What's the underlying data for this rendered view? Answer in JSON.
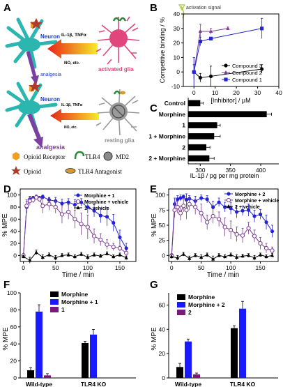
{
  "panel_labels": [
    "A",
    "B",
    "C",
    "D",
    "E",
    "F",
    "G"
  ],
  "panel_a": {
    "activation_signal": "activation signal",
    "neuron": "Neuron",
    "cytokines": "IL-1β, TNFα",
    "no": "NO, etc.",
    "analgesia": "analgesia",
    "activated_glia": "activated glia",
    "resting_glia": "resting glia",
    "legend": {
      "opioid_receptor": "Opioid Receptor",
      "tlr4": "TLR4",
      "md2": "MD2",
      "opioid": "Opioid",
      "antagonist": "TLR4 Antagonist"
    },
    "colors": {
      "neuron": "#2bb6b0",
      "glia": "#e0467c",
      "axon": "#7a3fa0",
      "arrow_red": "#e8221a",
      "arrow_yellow": "#f6ec2a"
    }
  },
  "chart_data": [
    {
      "panel": "B",
      "type": "line",
      "xlabel": "[Inhibitor] / μM",
      "ylabel": "Competitive binding / %",
      "xlim": [
        -5,
        40
      ],
      "ylim": [
        -10,
        40
      ],
      "xticks": [
        0,
        10,
        20,
        30,
        40
      ],
      "yticks": [
        -10,
        0,
        10,
        20,
        30,
        40
      ],
      "legend_position": "inside-bottom-right",
      "series": [
        {
          "name": "Compound 3",
          "color": "#000000",
          "marker": "circle",
          "x": [
            0,
            3,
            8,
            32
          ],
          "y": [
            0,
            -4,
            -3,
            2
          ],
          "err": [
            5,
            3,
            7,
            3
          ]
        },
        {
          "name": "Compound 2",
          "color": "#7a3b8f",
          "marker": "triangle",
          "x": [
            0,
            3,
            8,
            16
          ],
          "y": [
            0,
            28,
            28,
            30
          ],
          "err": [
            10,
            5,
            2,
            1
          ]
        },
        {
          "name": "Compound 1",
          "color": "#2424d6",
          "marker": "square",
          "x": [
            0,
            3,
            8,
            32
          ],
          "y": [
            0,
            21,
            23,
            30
          ],
          "err": [
            10,
            3,
            1,
            7
          ]
        }
      ]
    },
    {
      "panel": "C",
      "type": "bar",
      "orientation": "horizontal",
      "categories": [
        "Control",
        "Morphine",
        "1",
        "1 + Morphine",
        "2",
        "2 + Morphine"
      ],
      "values": [
        300,
        410,
        328,
        323,
        310,
        315
      ],
      "errors": [
        5,
        8,
        5,
        10,
        6,
        8
      ],
      "xlabel": "IL-1β / pg per mg protein",
      "xlim": [
        280,
        430
      ],
      "xticks": [
        300,
        350,
        400
      ],
      "color": "#000000"
    },
    {
      "panel": "D",
      "type": "line",
      "xlabel": "Time / min",
      "ylabel": "% MPE",
      "xlim": [
        -5,
        175
      ],
      "ylim": [
        -10,
        110
      ],
      "xticks": [
        0,
        50,
        100,
        150
      ],
      "yticks": [
        0,
        20,
        40,
        60,
        80,
        100
      ],
      "legend_position": "top-right",
      "series": [
        {
          "name": "Morphine + 1",
          "color": "#2424d6",
          "marker": "circle",
          "x": [
            0,
            5,
            10,
            15,
            20,
            25,
            30,
            40,
            50,
            60,
            70,
            80,
            90,
            100,
            110,
            120,
            130,
            140,
            150,
            160
          ],
          "y": [
            0,
            80,
            93,
            95,
            97,
            95,
            97,
            92,
            90,
            86,
            88,
            84,
            88,
            80,
            74,
            66,
            64,
            54,
            30,
            12
          ],
          "err": [
            3,
            10,
            5,
            3,
            3,
            3,
            3,
            4,
            6,
            7,
            6,
            8,
            6,
            10,
            10,
            12,
            15,
            14,
            12,
            8
          ]
        },
        {
          "name": "Morphine + vehicle",
          "color": "#7a3b8f",
          "marker": "circle-open",
          "x": [
            0,
            5,
            10,
            15,
            20,
            25,
            30,
            40,
            50,
            60,
            70,
            80,
            90,
            100,
            110,
            120,
            130,
            140,
            150,
            160
          ],
          "y": [
            0,
            82,
            90,
            92,
            96,
            93,
            82,
            85,
            80,
            68,
            72,
            60,
            52,
            47,
            32,
            26,
            18,
            14,
            12,
            4
          ],
          "err": [
            3,
            10,
            7,
            5,
            3,
            4,
            12,
            10,
            10,
            15,
            12,
            15,
            18,
            20,
            12,
            10,
            8,
            6,
            5,
            5
          ]
        },
        {
          "name": "1 + vehicle",
          "color": "#000000",
          "marker": "triangle",
          "x": [
            0,
            10,
            20,
            30,
            40,
            50,
            60,
            70,
            80,
            90,
            100,
            110,
            120,
            130,
            140,
            150,
            160
          ],
          "y": [
            -2,
            -8,
            5,
            -3,
            1,
            -4,
            0,
            1,
            -2,
            2,
            -3,
            1,
            -1,
            3,
            -2,
            1,
            -4
          ],
          "err": [
            2,
            5,
            4,
            4,
            3,
            4,
            3,
            3,
            3,
            3,
            4,
            3,
            3,
            3,
            3,
            3,
            3
          ]
        }
      ]
    },
    {
      "panel": "E",
      "type": "line",
      "xlabel": "Time / min",
      "ylabel": "% MPE",
      "xlim": [
        -5,
        180
      ],
      "ylim": [
        -10,
        110
      ],
      "xticks": [
        0,
        50,
        100,
        150
      ],
      "yticks": [
        0,
        25,
        50,
        75,
        100
      ],
      "legend_position": "top-right",
      "series": [
        {
          "name": "Morphine + 2",
          "color": "#2424d6",
          "marker": "circle",
          "x": [
            0,
            5,
            10,
            15,
            20,
            25,
            30,
            40,
            50,
            60,
            70,
            80,
            90,
            100,
            110,
            120,
            130,
            140,
            150,
            160,
            170
          ],
          "y": [
            0,
            85,
            93,
            95,
            97,
            92,
            94,
            90,
            95,
            93,
            80,
            88,
            80,
            78,
            72,
            74,
            75,
            65,
            68,
            55,
            40
          ],
          "err": [
            3,
            10,
            6,
            5,
            3,
            10,
            5,
            8,
            5,
            6,
            10,
            7,
            8,
            10,
            10,
            8,
            10,
            10,
            8,
            12,
            10
          ]
        },
        {
          "name": "Morphine + vehicle",
          "color": "#7a3b8f",
          "marker": "circle-open",
          "x": [
            0,
            5,
            10,
            15,
            20,
            25,
            30,
            40,
            50,
            60,
            70,
            80,
            90,
            100,
            110,
            120,
            130,
            140,
            150,
            160,
            170
          ],
          "y": [
            0,
            75,
            80,
            70,
            82,
            75,
            85,
            80,
            70,
            55,
            65,
            60,
            47,
            42,
            35,
            33,
            45,
            32,
            20,
            12,
            8
          ],
          "err": [
            3,
            12,
            10,
            12,
            10,
            15,
            10,
            12,
            15,
            12,
            12,
            12,
            15,
            15,
            12,
            12,
            10,
            10,
            10,
            8,
            6
          ]
        },
        {
          "name": "2 + vehicle",
          "color": "#000000",
          "marker": "triangle",
          "x": [
            0,
            10,
            20,
            30,
            40,
            50,
            60,
            70,
            80,
            90,
            100,
            110,
            120,
            130,
            140,
            150,
            160,
            170
          ],
          "y": [
            -2,
            -4,
            2,
            -5,
            0,
            -3,
            1,
            -6,
            0,
            -2,
            1,
            -3,
            -1,
            0,
            -4,
            1,
            -2,
            0
          ],
          "err": [
            3,
            4,
            3,
            4,
            3,
            4,
            3,
            5,
            3,
            3,
            3,
            4,
            3,
            3,
            4,
            3,
            3,
            3
          ]
        }
      ]
    },
    {
      "panel": "F",
      "type": "bar",
      "ylabel": "% MPE",
      "categories": [
        "Wild-type",
        "TLR4 KO"
      ],
      "ylim": [
        0,
        100
      ],
      "yticks": [
        0,
        20,
        40,
        60,
        80,
        100
      ],
      "legend_position": "top-right",
      "series": [
        {
          "name": "Morphine",
          "color": "#000000",
          "values": [
            9,
            41
          ],
          "errors": [
            3,
            2
          ]
        },
        {
          "name": "Morphine + 1",
          "color": "#1a1aff",
          "values": [
            78,
            51
          ],
          "errors": [
            8,
            6
          ]
        },
        {
          "name": "1",
          "color": "#7a1a7a",
          "values": [
            3,
            null
          ],
          "errors": [
            2,
            0
          ]
        }
      ]
    },
    {
      "panel": "G",
      "type": "bar",
      "ylabel": "% MPE",
      "categories": [
        "Wild-type",
        "TLR4 KO"
      ],
      "ylim": [
        0,
        70
      ],
      "yticks": [
        0,
        20,
        40,
        60
      ],
      "legend_position": "top-left",
      "series": [
        {
          "name": "Morphine",
          "color": "#000000",
          "values": [
            9,
            41
          ],
          "errors": [
            3,
            2
          ]
        },
        {
          "name": "Morphine + 2",
          "color": "#1a1aff",
          "values": [
            30,
            57
          ],
          "errors": [
            2,
            6
          ]
        },
        {
          "name": "2",
          "color": "#7a1a7a",
          "values": [
            3,
            null
          ],
          "errors": [
            1,
            0
          ]
        }
      ]
    }
  ]
}
